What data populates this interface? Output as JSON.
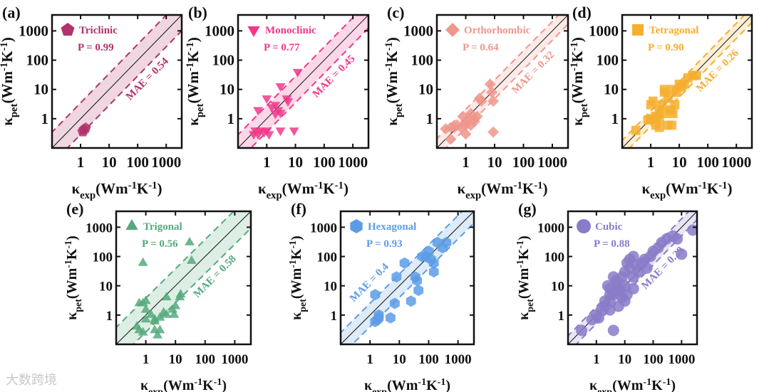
{
  "watermark": "大数跨境",
  "chart_data": [
    {
      "type": "scatter",
      "panel": "(a)",
      "legend": "Triclinic",
      "marker": "pentagon",
      "color": "#b0336b",
      "pearson": "P = 0.99",
      "mae": 0.54,
      "mae_label": "MAE = 0.54",
      "mae_side": "lower",
      "xlim": [
        0.1,
        3500
      ],
      "ylim": [
        0.1,
        3500
      ],
      "xscale": "log",
      "yscale": "log",
      "xticks": [
        "1",
        "10",
        "100",
        "1000"
      ],
      "yticks": [
        "1",
        "10",
        "100",
        "1000"
      ],
      "points": [
        [
          1.3,
          0.42
        ],
        [
          1.5,
          0.48
        ],
        [
          1.2,
          0.36
        ]
      ]
    },
    {
      "type": "scatter",
      "panel": "(b)",
      "legend": "Monoclinic",
      "marker": "triangle-down",
      "color": "#f0388a",
      "pearson": "P = 0.77",
      "mae": 0.45,
      "mae_label": "MAE = 0.45",
      "mae_side": "lower",
      "xlim": [
        0.1,
        3500
      ],
      "ylim": [
        0.1,
        3500
      ],
      "xscale": "log",
      "yscale": "log",
      "xticks": [
        "1",
        "10",
        "100",
        "1000"
      ],
      "yticks": [
        "1",
        "10",
        "100",
        "1000"
      ],
      "points": [
        [
          12,
          40
        ],
        [
          3,
          13
        ],
        [
          1,
          5
        ],
        [
          5,
          5
        ],
        [
          5.5,
          4
        ],
        [
          2,
          3
        ],
        [
          2.5,
          2
        ],
        [
          2,
          1.5
        ],
        [
          0.5,
          2
        ],
        [
          0.4,
          0.4
        ],
        [
          0.5,
          0.3
        ],
        [
          0.6,
          0.4
        ],
        [
          0.8,
          0.35
        ],
        [
          1,
          0.4
        ],
        [
          1.2,
          0.3
        ],
        [
          3,
          0.4
        ],
        [
          9,
          0.4
        ],
        [
          0.35,
          0.3
        ],
        [
          1.5,
          2.5
        ],
        [
          3,
          1.6
        ]
      ]
    },
    {
      "type": "scatter",
      "panel": "(c)",
      "legend": "Orthorhombic",
      "marker": "diamond",
      "color": "#ee978c",
      "pearson": "P = 0.64",
      "mae": 0.32,
      "mae_label": "MAE = 0.32",
      "mae_side": "lower",
      "xlim": [
        0.1,
        3500
      ],
      "ylim": [
        0.1,
        3500
      ],
      "xscale": "log",
      "yscale": "log",
      "xticks": [
        "1",
        "10",
        "100",
        "1000"
      ],
      "yticks": [
        "1",
        "10",
        "100",
        "1000"
      ],
      "points": [
        [
          0.2,
          0.45
        ],
        [
          0.3,
          0.5
        ],
        [
          0.3,
          0.2
        ],
        [
          0.4,
          0.5
        ],
        [
          0.5,
          0.6
        ],
        [
          0.7,
          0.5
        ],
        [
          1,
          0.3
        ],
        [
          1,
          0.6
        ],
        [
          1,
          0.8
        ],
        [
          1.2,
          1
        ],
        [
          1.5,
          1.5
        ],
        [
          2,
          1
        ],
        [
          2,
          0.8
        ],
        [
          2.5,
          1.2
        ],
        [
          3,
          5
        ],
        [
          3.5,
          4
        ],
        [
          7,
          15
        ],
        [
          8,
          8
        ],
        [
          9,
          4
        ],
        [
          9,
          0.35
        ],
        [
          0.8,
          1.2
        ],
        [
          1.5,
          0.6
        ]
      ]
    },
    {
      "type": "scatter",
      "panel": "(d)",
      "legend": "Tetragonal",
      "marker": "square",
      "color": "#f6ae2d",
      "pearson": "P = 0.90",
      "mae": 0.26,
      "mae_label": "MAE = 0.26",
      "mae_side": "lower",
      "xlim": [
        0.1,
        3500
      ],
      "ylim": [
        0.1,
        3500
      ],
      "xscale": "log",
      "yscale": "log",
      "xticks": [
        "1",
        "10",
        "100",
        "1000"
      ],
      "yticks": [
        "1",
        "10",
        "100",
        "1000"
      ],
      "points": [
        [
          0.3,
          0.4
        ],
        [
          0.8,
          0.9
        ],
        [
          1,
          1
        ],
        [
          1,
          3
        ],
        [
          1.2,
          4
        ],
        [
          1.5,
          0.6
        ],
        [
          2,
          0.5
        ],
        [
          2,
          2
        ],
        [
          2.5,
          3
        ],
        [
          3,
          8
        ],
        [
          3,
          10
        ],
        [
          4,
          5
        ],
        [
          4,
          0.6
        ],
        [
          5.5,
          0.6
        ],
        [
          6,
          1.5
        ],
        [
          6,
          10
        ],
        [
          7,
          3
        ],
        [
          8,
          8
        ],
        [
          10,
          15
        ],
        [
          12,
          12
        ],
        [
          15,
          15
        ],
        [
          20,
          25
        ],
        [
          30,
          30
        ],
        [
          40,
          30
        ],
        [
          2,
          1
        ],
        [
          3,
          1.5
        ],
        [
          5,
          2
        ],
        [
          1.5,
          1.2
        ]
      ]
    },
    {
      "type": "scatter",
      "panel": "(e)",
      "legend": "Trigonal",
      "marker": "triangle-up",
      "color": "#55a97d",
      "pearson": "P = 0.56",
      "mae": 0.58,
      "mae_label": "MAE = 0.58",
      "mae_side": "lower",
      "xlim": [
        0.1,
        3500
      ],
      "ylim": [
        0.1,
        3500
      ],
      "xscale": "log",
      "yscale": "log",
      "xticks": [
        "1",
        "10",
        "100",
        "1000"
      ],
      "yticks": [
        "1",
        "10",
        "100",
        "1000"
      ],
      "points": [
        [
          0.8,
          60
        ],
        [
          30,
          300
        ],
        [
          35,
          70
        ],
        [
          15,
          5
        ],
        [
          14,
          4
        ],
        [
          5,
          4
        ],
        [
          10,
          2
        ],
        [
          8,
          1.5
        ],
        [
          9,
          1
        ],
        [
          5,
          1
        ],
        [
          4,
          1.2
        ],
        [
          3,
          0.8
        ],
        [
          2,
          0.7
        ],
        [
          2,
          0.6
        ],
        [
          1.5,
          1
        ],
        [
          1,
          0.7
        ],
        [
          1,
          1.5
        ],
        [
          0.8,
          2.5
        ],
        [
          0.6,
          2.5
        ],
        [
          0.5,
          0.4
        ],
        [
          0.6,
          0.3
        ],
        [
          0.8,
          0.25
        ],
        [
          2,
          0.3
        ],
        [
          2.5,
          0.2
        ],
        [
          3,
          0.3
        ],
        [
          1,
          3
        ]
      ]
    },
    {
      "type": "scatter",
      "panel": "(f)",
      "legend": "Hexagonal",
      "marker": "hexagon",
      "color": "#5c9ce6",
      "pearson": "P = 0.93",
      "mae": 0.4,
      "mae_label": "MAE = 0.4",
      "mae_side": "upper",
      "xlim": [
        0.1,
        3500
      ],
      "ylim": [
        0.1,
        3500
      ],
      "xscale": "log",
      "yscale": "log",
      "xticks": [
        "1",
        "10",
        "100",
        "1000"
      ],
      "yticks": [
        "1",
        "10",
        "100",
        "1000"
      ],
      "points": [
        [
          1.5,
          0.6
        ],
        [
          2,
          1
        ],
        [
          2,
          0.8
        ],
        [
          1.5,
          5
        ],
        [
          5,
          0.8
        ],
        [
          7,
          2.5
        ],
        [
          8,
          20
        ],
        [
          15,
          60
        ],
        [
          25,
          3
        ],
        [
          35,
          20
        ],
        [
          40,
          15
        ],
        [
          45,
          7
        ],
        [
          60,
          100
        ],
        [
          80,
          100
        ],
        [
          100,
          150
        ],
        [
          150,
          60
        ],
        [
          150,
          30
        ],
        [
          200,
          300
        ],
        [
          300,
          200
        ],
        [
          400,
          300
        ],
        [
          120,
          80
        ],
        [
          1.8,
          0.7
        ]
      ]
    },
    {
      "type": "scatter",
      "panel": "(g)",
      "legend": "Cubic",
      "marker": "circle",
      "color": "#8a7bc8",
      "pearson": "P = 0.88",
      "mae": 0.29,
      "mae_label": "MAE = 0.29",
      "mae_side": "lower",
      "xlim": [
        0.1,
        3500
      ],
      "ylim": [
        0.1,
        3500
      ],
      "xscale": "log",
      "yscale": "log",
      "xticks": [
        "1",
        "10",
        "100",
        "1000"
      ],
      "yticks": [
        "1",
        "10",
        "100",
        "1000"
      ],
      "points": [
        [
          0.3,
          0.3
        ],
        [
          0.7,
          0.7
        ],
        [
          1,
          1
        ],
        [
          1.2,
          0.8
        ],
        [
          1.5,
          1.5
        ],
        [
          2,
          3
        ],
        [
          2,
          2
        ],
        [
          3,
          5
        ],
        [
          3,
          3
        ],
        [
          3,
          8
        ],
        [
          4,
          5
        ],
        [
          4,
          0.3
        ],
        [
          5,
          10
        ],
        [
          5,
          15
        ],
        [
          6,
          6
        ],
        [
          7,
          8
        ],
        [
          8,
          20
        ],
        [
          10,
          10
        ],
        [
          10,
          30
        ],
        [
          12,
          60
        ],
        [
          15,
          40
        ],
        [
          15,
          80
        ],
        [
          20,
          20
        ],
        [
          20,
          100
        ],
        [
          25,
          50
        ],
        [
          30,
          30
        ],
        [
          40,
          60
        ],
        [
          50,
          80
        ],
        [
          60,
          40
        ],
        [
          80,
          100
        ],
        [
          100,
          150
        ],
        [
          150,
          200
        ],
        [
          200,
          300
        ],
        [
          300,
          400
        ],
        [
          500,
          500
        ],
        [
          700,
          400
        ],
        [
          1000,
          120
        ],
        [
          2500,
          800
        ],
        [
          6,
          2
        ],
        [
          8,
          4
        ],
        [
          3,
          1.5
        ],
        [
          12,
          5
        ],
        [
          2.5,
          10
        ],
        [
          4,
          20
        ],
        [
          20,
          8
        ],
        [
          10,
          3
        ]
      ]
    }
  ],
  "axis_labels": {
    "x": {
      "symbol": "κ",
      "sub": "exp",
      "pre": "(Wm",
      "exp1": "-1",
      "mid": "K",
      "exp2": "-1",
      "post": ")"
    },
    "y": {
      "symbol": "κ",
      "sub": "pet",
      "pre": "(Wm",
      "exp1": "-1",
      "mid": "K",
      "exp2": "-1",
      "post": ")"
    }
  }
}
